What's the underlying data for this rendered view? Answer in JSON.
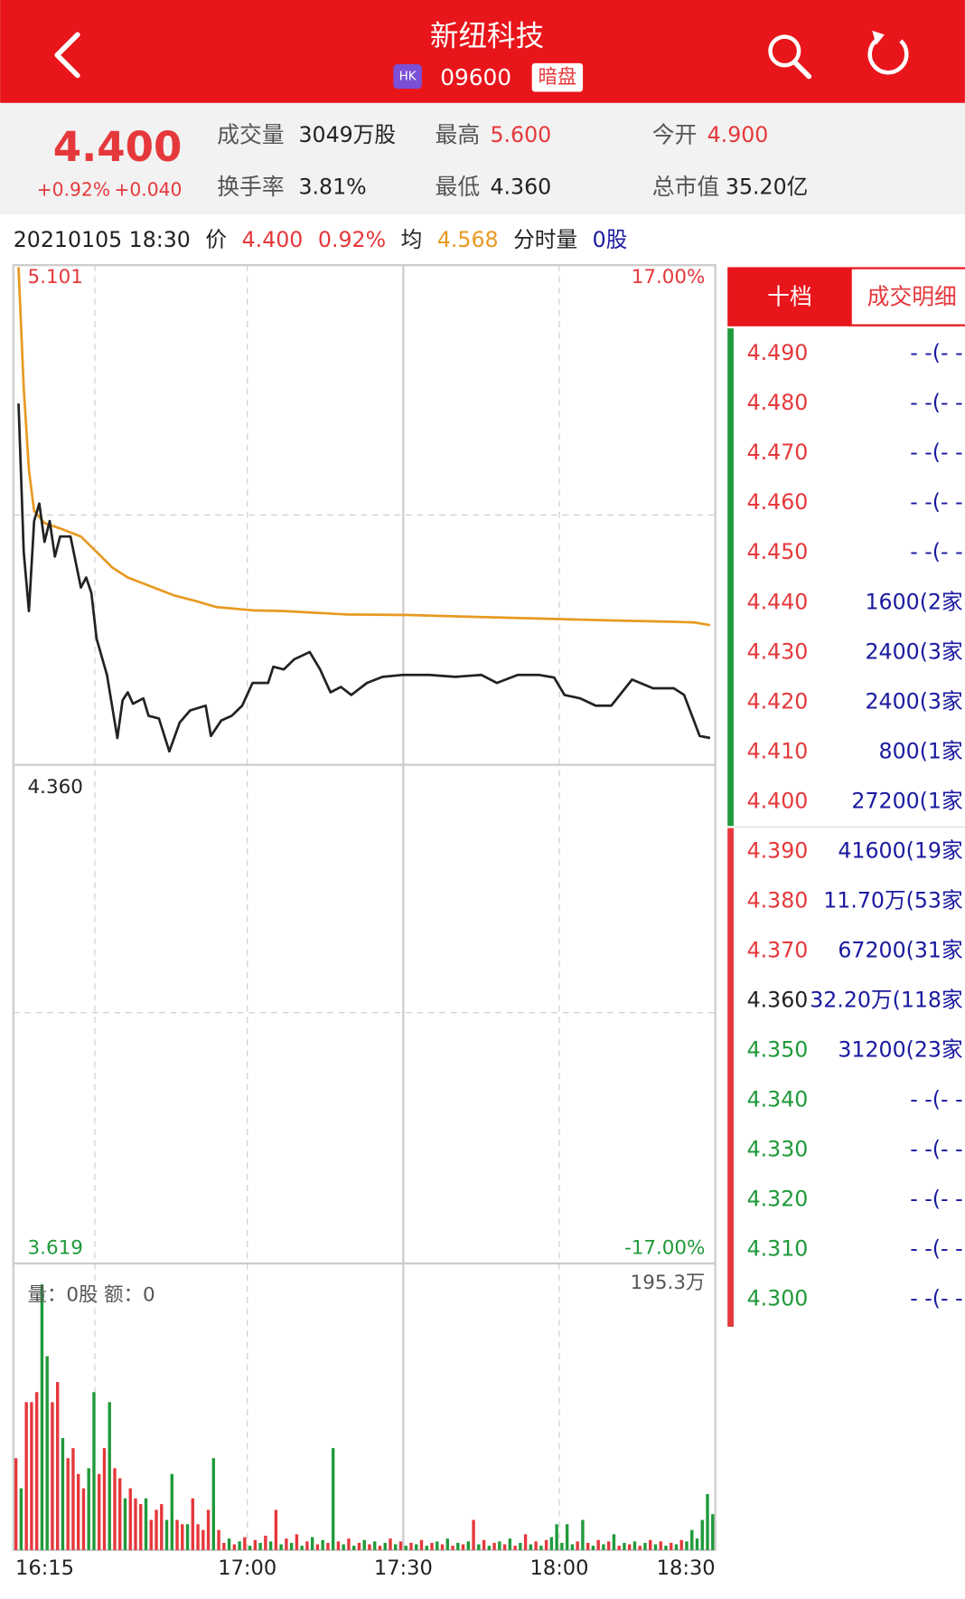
{
  "header": {
    "title": "新纽科技",
    "market": "HK",
    "code": "09600",
    "session": "暗盘"
  },
  "quote": {
    "price": "4.400",
    "change_pct": "+0.92%",
    "change": "+0.040",
    "stats": [
      {
        "label": "成交量",
        "value": "3049万股"
      },
      {
        "label": "最高",
        "value": "5.600"
      },
      {
        "label": "今开",
        "value": "4.900"
      },
      {
        "label": "换手率",
        "value": "3.81%"
      },
      {
        "label": "最低",
        "value": "4.360"
      },
      {
        "label": "总市值",
        "value": "35.20亿"
      }
    ]
  },
  "info_bar": {
    "datetime": "20210105 18:30",
    "price_label": "价",
    "price": "4.400",
    "pct": "0.92%",
    "avg_label": "均",
    "avg": "4.568",
    "vol_label": "分时量",
    "vol": "0股"
  },
  "intraday": {
    "xlim": [
      "16:15",
      "18:30"
    ],
    "time_ticks": [
      "16:15",
      "17:00",
      "17:30",
      "18:00",
      "18:30"
    ],
    "ylim": [
      3.619,
      5.101
    ],
    "yticks": [
      3.619,
      {
        "value": 4.36,
        "label": "4.360"
      },
      5.101
    ],
    "pct_lim": [
      -17,
      17
    ],
    "pct_ticks": [
      {
        "value": -17,
        "label": "-17.00%"
      },
      {
        "value": 17,
        "label": "17.00%"
      }
    ],
    "price_line": {
      "color": "#222222",
      "x": [
        "16:16",
        "16:17",
        "16:18",
        "16:19",
        "16:20",
        "16:21",
        "16:22",
        "16:23",
        "16:24",
        "16:26",
        "16:27",
        "16:28",
        "16:29",
        "16:30",
        "16:31",
        "16:33",
        "16:35",
        "16:36",
        "16:37",
        "16:38",
        "16:40",
        "16:41",
        "16:43",
        "16:45",
        "16:47",
        "16:49",
        "16:52",
        "16:53",
        "16:55",
        "16:57",
        "16:59",
        "17:01",
        "17:04",
        "17:05",
        "17:07",
        "17:09",
        "17:12",
        "17:14",
        "17:16",
        "17:18",
        "17:20",
        "17:23",
        "17:26",
        "17:30",
        "17:35",
        "17:40",
        "17:45",
        "17:48",
        "17:52",
        "17:56",
        "17:59",
        "18:01",
        "18:04",
        "18:07",
        "18:10",
        "18:14",
        "18:18",
        "18:22",
        "18:24",
        "18:27",
        "18:29"
      ],
      "values": [
        4.898,
        4.677,
        4.589,
        4.723,
        4.749,
        4.692,
        4.723,
        4.67,
        4.7,
        4.7,
        4.662,
        4.624,
        4.639,
        4.616,
        4.548,
        4.494,
        4.4,
        4.456,
        4.468,
        4.451,
        4.459,
        4.433,
        4.429,
        4.38,
        4.423,
        4.441,
        4.448,
        4.403,
        4.426,
        4.433,
        4.448,
        4.482,
        4.482,
        4.506,
        4.502,
        4.517,
        4.528,
        4.502,
        4.468,
        4.476,
        4.464,
        4.482,
        4.491,
        4.494,
        4.494,
        4.491,
        4.494,
        4.482,
        4.494,
        4.494,
        4.49,
        4.464,
        4.459,
        4.448,
        4.448,
        4.487,
        4.474,
        4.474,
        4.464,
        4.403,
        4.4
      ]
    },
    "avg_line": {
      "color": "#e89a22",
      "x": [
        "16:16",
        "16:17",
        "16:18",
        "16:19",
        "16:21",
        "16:24",
        "16:28",
        "16:31",
        "16:34",
        "16:37",
        "16:42",
        "16:46",
        "16:50",
        "16:54",
        "17:01",
        "17:07",
        "17:19",
        "17:31",
        "17:45",
        "18:00",
        "18:10",
        "18:22",
        "18:26",
        "18:29"
      ],
      "values": [
        5.101,
        4.921,
        4.799,
        4.738,
        4.72,
        4.712,
        4.7,
        4.677,
        4.654,
        4.639,
        4.624,
        4.612,
        4.604,
        4.595,
        4.59,
        4.589,
        4.584,
        4.583,
        4.58,
        4.577,
        4.575,
        4.573,
        4.572,
        4.568
      ]
    },
    "volume_label": "量：0股 额：0",
    "volume": {
      "ylim": [
        0,
        195.3
      ],
      "yticks": [
        {
          "value": 195.3,
          "label": "195.3万"
        }
      ],
      "values": [
        64,
        43,
        103,
        103,
        110,
        185,
        135,
        103,
        117,
        78,
        64,
        71,
        53,
        43,
        57,
        110,
        53,
        71,
        103,
        57,
        50,
        36,
        43,
        36,
        32,
        36,
        21,
        28,
        32,
        21,
        53,
        21,
        18,
        18,
        36,
        18,
        14,
        28,
        64,
        14,
        5,
        8,
        4,
        6,
        9,
        3,
        7,
        5,
        10,
        6,
        28,
        4,
        8,
        5,
        11,
        3,
        6,
        9,
        4,
        7,
        5,
        71,
        6,
        4,
        8,
        3,
        5,
        7,
        4,
        6,
        3,
        5,
        8,
        4,
        6,
        3,
        5,
        4,
        7,
        3,
        5,
        6,
        4,
        8,
        3,
        5,
        4,
        6,
        21,
        4,
        7,
        3,
        5,
        6,
        4,
        8,
        3,
        5,
        11,
        4,
        6,
        3,
        7,
        9,
        18,
        5,
        18,
        4,
        6,
        21,
        5,
        3,
        7,
        4,
        6,
        11,
        3,
        5,
        4,
        6,
        3,
        5,
        7,
        4,
        6,
        3,
        5,
        4,
        7,
        6,
        14,
        8,
        21,
        39,
        25
      ],
      "colors": [
        "#e5383b",
        "#1f9a3a",
        "#e5383b",
        "#e5383b",
        "#e5383b",
        "#1f9a3a",
        "#1f9a3a",
        "#e5383b",
        "#e5383b",
        "#1f9a3a",
        "#e5383b",
        "#e5383b",
        "#e5383b",
        "#e5383b",
        "#1f9a3a",
        "#1f9a3a",
        "#e5383b",
        "#e5383b",
        "#1f9a3a",
        "#e5383b",
        "#e5383b",
        "#1f9a3a",
        "#e5383b",
        "#e5383b",
        "#e5383b",
        "#1f9a3a",
        "#e5383b",
        "#e5383b",
        "#e5383b",
        "#1f9a3a",
        "#1f9a3a",
        "#e5383b",
        "#e5383b",
        "#1f9a3a",
        "#e5383b",
        "#e5383b",
        "#e5383b",
        "#e5383b",
        "#1f9a3a",
        "#e5383b",
        "#e5383b",
        "#1f9a3a",
        "#e5383b",
        "#1f9a3a",
        "#e5383b",
        "#1f9a3a",
        "#e5383b",
        "#1f9a3a",
        "#e5383b",
        "#1f9a3a",
        "#e5383b",
        "#1f9a3a",
        "#e5383b",
        "#1f9a3a",
        "#e5383b",
        "#1f9a3a",
        "#e5383b",
        "#1f9a3a",
        "#e5383b",
        "#1f9a3a",
        "#e5383b",
        "#1f9a3a",
        "#e5383b",
        "#1f9a3a",
        "#e5383b",
        "#1f9a3a",
        "#e5383b",
        "#1f9a3a",
        "#e5383b",
        "#1f9a3a",
        "#e5383b",
        "#1f9a3a",
        "#e5383b",
        "#1f9a3a",
        "#e5383b",
        "#1f9a3a",
        "#e5383b",
        "#1f9a3a",
        "#e5383b",
        "#1f9a3a",
        "#e5383b",
        "#1f9a3a",
        "#e5383b",
        "#1f9a3a",
        "#e5383b",
        "#1f9a3a",
        "#e5383b",
        "#1f9a3a",
        "#e5383b",
        "#1f9a3a",
        "#e5383b",
        "#1f9a3a",
        "#e5383b",
        "#1f9a3a",
        "#e5383b",
        "#1f9a3a",
        "#e5383b",
        "#1f9a3a",
        "#e5383b",
        "#1f9a3a",
        "#e5383b",
        "#1f9a3a",
        "#e5383b",
        "#1f9a3a",
        "#1f9a3a",
        "#1f9a3a",
        "#1f9a3a",
        "#1f9a3a",
        "#e5383b",
        "#1f9a3a",
        "#e5383b",
        "#1f9a3a",
        "#e5383b",
        "#1f9a3a",
        "#e5383b",
        "#1f9a3a",
        "#e5383b",
        "#1f9a3a",
        "#e5383b",
        "#1f9a3a",
        "#e5383b",
        "#1f9a3a",
        "#e5383b",
        "#1f9a3a",
        "#e5383b",
        "#1f9a3a",
        "#e5383b",
        "#1f9a3a",
        "#e5383b",
        "#1f9a3a",
        "#1f9a3a",
        "#1f9a3a",
        "#1f9a3a",
        "#1f9a3a",
        "#1f9a3a"
      ]
    }
  },
  "order_book": {
    "tabs": [
      "十档",
      "成交明细"
    ],
    "rows": [
      {
        "price": "4.490",
        "amount": "- -(- -",
        "color": "#e5383b"
      },
      {
        "price": "4.480",
        "amount": "- -(- -",
        "color": "#e5383b"
      },
      {
        "price": "4.470",
        "amount": "- -(- -",
        "color": "#e5383b"
      },
      {
        "price": "4.460",
        "amount": "- -(- -",
        "color": "#e5383b"
      },
      {
        "price": "4.450",
        "amount": "- -(- -",
        "color": "#e5383b"
      },
      {
        "price": "4.440",
        "amount": "1600(2家",
        "color": "#e5383b"
      },
      {
        "price": "4.430",
        "amount": "2400(3家",
        "color": "#e5383b"
      },
      {
        "price": "4.420",
        "amount": "2400(3家",
        "color": "#e5383b"
      },
      {
        "price": "4.410",
        "amount": "800(1家",
        "color": "#e5383b"
      },
      {
        "price": "4.400",
        "amount": "27200(1家",
        "color": "#e5383b"
      },
      {
        "price": "4.390",
        "amount": "41600(19家",
        "color": "#e5383b"
      },
      {
        "price": "4.380",
        "amount": "11.70万(53家",
        "color": "#e5383b"
      },
      {
        "price": "4.370",
        "amount": "67200(31家",
        "color": "#e5383b"
      },
      {
        "price": "4.360",
        "amount": "32.20万(118家",
        "color": "#222222"
      },
      {
        "price": "4.350",
        "amount": "31200(23家",
        "color": "#1f9a3a"
      },
      {
        "price": "4.340",
        "amount": "- -(- -",
        "color": "#1f9a3a"
      },
      {
        "price": "4.330",
        "amount": "- -(- -",
        "color": "#1f9a3a"
      },
      {
        "price": "4.320",
        "amount": "- -(- -",
        "color": "#1f9a3a"
      },
      {
        "price": "4.310",
        "amount": "- -(- -",
        "color": "#1f9a3a"
      },
      {
        "price": "4.300",
        "amount": "- -(- -",
        "color": "#1f9a3a"
      }
    ]
  }
}
